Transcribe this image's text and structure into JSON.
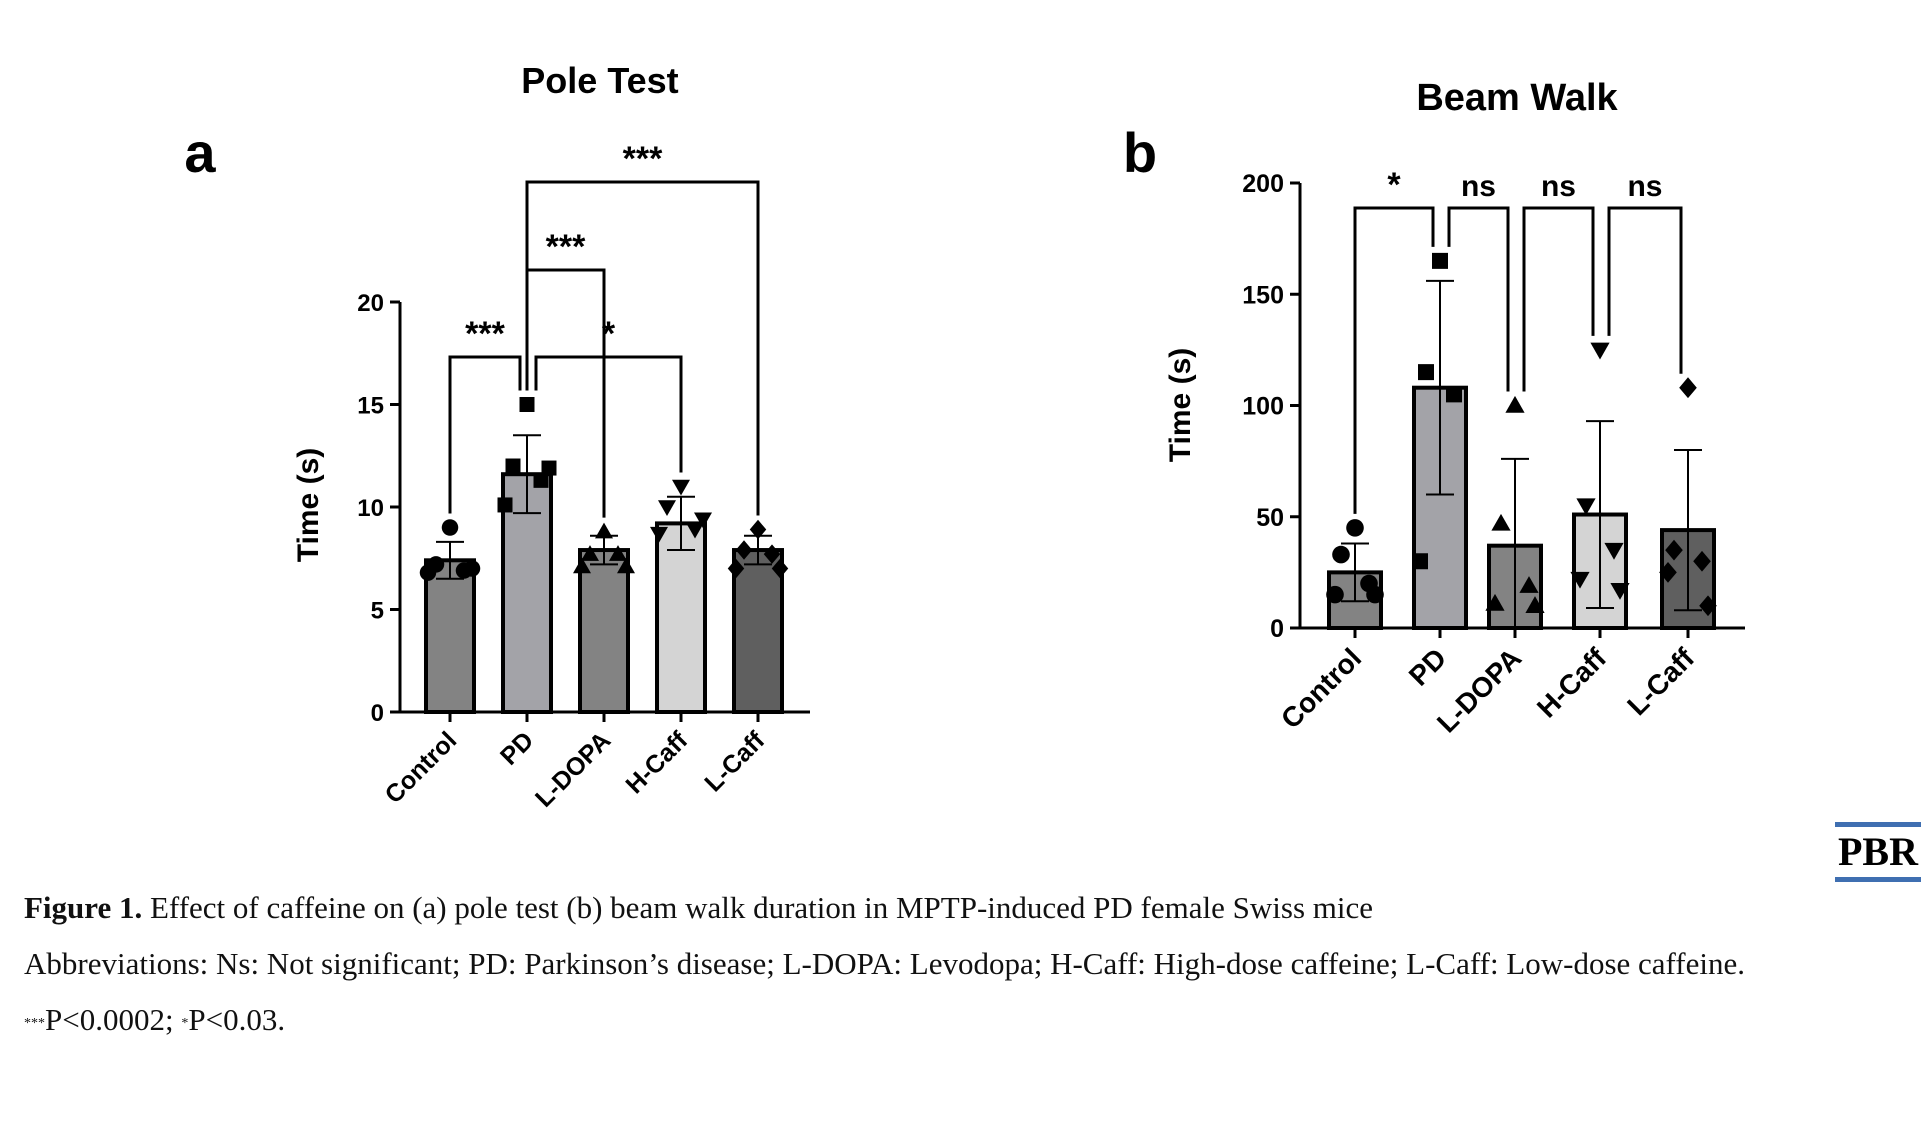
{
  "chart_data": [
    {
      "type": "bar",
      "panel_label": "a",
      "title": "Pole Test",
      "ylabel": "Time (s)",
      "xlabel": "",
      "ylim": [
        0,
        20
      ],
      "yticks": [
        0,
        5,
        10,
        15,
        20
      ],
      "categories": [
        "Control",
        "PD",
        "L-DOPA",
        "H-Caff",
        "L-Caff"
      ],
      "values": [
        7.4,
        11.6,
        7.9,
        9.2,
        7.9
      ],
      "errors": [
        0.9,
        1.9,
        0.7,
        1.3,
        0.7
      ],
      "bar_colors": [
        "#838383",
        "#a3a3a8",
        "#838383",
        "#d4d4d4",
        "#5f5f5f"
      ],
      "markers": [
        "circle",
        "square",
        "triangle-up",
        "triangle-down",
        "diamond"
      ],
      "points": [
        [
          9.0,
          7.2,
          6.9,
          6.8,
          7.0
        ],
        [
          15.0,
          12.0,
          11.3,
          10.1,
          11.9
        ],
        [
          8.8,
          7.7,
          7.7,
          7.1,
          7.1
        ],
        [
          11.0,
          10.0,
          8.9,
          8.7,
          9.4
        ],
        [
          8.9,
          7.9,
          7.7,
          7.0,
          7.0
        ]
      ],
      "significance": [
        {
          "from": "Control",
          "to": "PD",
          "label": "***"
        },
        {
          "from": "PD",
          "to": "H-Caff",
          "label": "*"
        },
        {
          "from": "PD",
          "to": "L-DOPA",
          "label": "***"
        },
        {
          "from": "PD",
          "to": "L-Caff",
          "label": "***"
        }
      ]
    },
    {
      "type": "bar",
      "panel_label": "b",
      "title": "Beam Walk",
      "ylabel": "Time (s)",
      "xlabel": "",
      "ylim": [
        0,
        200
      ],
      "yticks": [
        0,
        50,
        100,
        150,
        200
      ],
      "categories": [
        "Control",
        "PD",
        "L-DOPA",
        "H-Caff",
        "L-Caff"
      ],
      "values": [
        25,
        108,
        37,
        51,
        44
      ],
      "errors": [
        13,
        48,
        39,
        42,
        36
      ],
      "bar_colors": [
        "#838383",
        "#a3a3a8",
        "#838383",
        "#d4d4d4",
        "#5f5f5f"
      ],
      "markers": [
        "circle",
        "square",
        "triangle-up",
        "triangle-down",
        "diamond"
      ],
      "points": [
        [
          45,
          33,
          20,
          15,
          15
        ],
        [
          165,
          115,
          105,
          30
        ],
        [
          100,
          47,
          19,
          11,
          10
        ],
        [
          125,
          55,
          35,
          22,
          17
        ],
        [
          108,
          35,
          30,
          25,
          10
        ]
      ],
      "significance": [
        {
          "from": "Control",
          "to": "PD",
          "label": "*"
        },
        {
          "from": "PD",
          "to": "L-DOPA",
          "label": "ns"
        },
        {
          "from": "L-DOPA",
          "to": "H-Caff",
          "label": "ns"
        },
        {
          "from": "H-Caff",
          "to": "L-Caff",
          "label": "ns"
        }
      ]
    }
  ],
  "logo": "PBR",
  "caption": {
    "title": "Figure 1.",
    "text": " Effect of caffeine on (a) pole test (b) beam walk duration in MPTP-induced PD female Swiss mice",
    "abbreviations": "Abbreviations: Ns: Not significant; PD: Parkinson’s disease; L-DOPA: Levodopa; H-Caff: High-dose caffeine; L-Caff: Low-dose caffeine.",
    "note_sup1": "***",
    "note_text1": "P<0.0002; ",
    "note_sup2": "*",
    "note_text2": "P<0.03."
  }
}
